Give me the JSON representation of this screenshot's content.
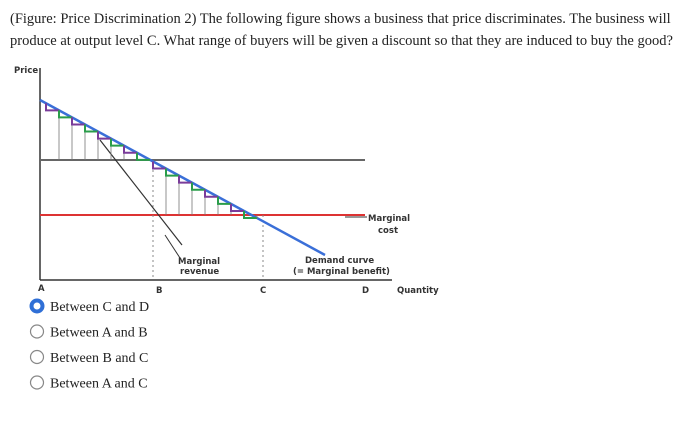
{
  "question": "(Figure: Price Discrimination 2) The following figure shows a business that price discriminates. The business will produce at output level C. What range of buyers will be given a discount so that they are induced to buy the good?",
  "figure": {
    "y_axis_label": "Price",
    "x_axis_label": "Quantity",
    "points": [
      "A",
      "B",
      "C",
      "D"
    ],
    "marginal_cost_label": [
      "Marginal",
      "cost"
    ],
    "marginal_revenue_label": [
      "Marginal",
      "revenue"
    ],
    "demand_label": [
      "Demand curve",
      "(= Marginal benefit)"
    ]
  },
  "options": [
    {
      "label": "Between C and D",
      "selected": true
    },
    {
      "label": "Between A and B",
      "selected": false
    },
    {
      "label": "Between B and C",
      "selected": false
    },
    {
      "label": "Between A and C",
      "selected": false
    }
  ]
}
